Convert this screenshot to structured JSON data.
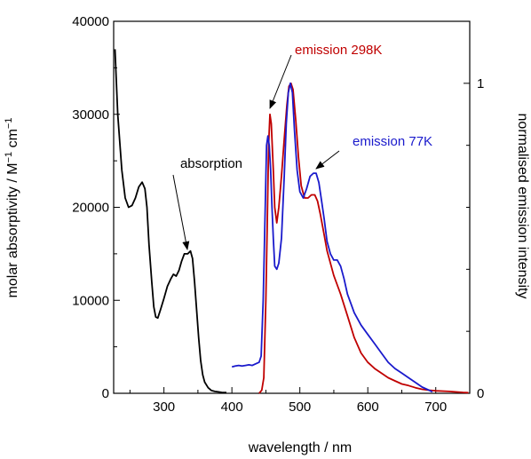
{
  "chart_data": {
    "type": "line",
    "x_axis": {
      "label": "wavelength / nm",
      "range": [
        226,
        750
      ],
      "ticks": [
        300,
        400,
        500,
        600,
        700
      ]
    },
    "y_axis_left": {
      "label_main": "molar absorptivity / M",
      "label_exp1": "−1",
      "label_mid": " cm",
      "label_exp2": "−1",
      "range": [
        0,
        40000
      ],
      "ticks": [
        0,
        10000,
        20000,
        30000,
        40000
      ]
    },
    "y_axis_right": {
      "label": "normalised emission intensity",
      "range": [
        0,
        1.2
      ],
      "ticks": [
        0,
        1
      ]
    },
    "series": [
      {
        "name": "absorption",
        "axis": "left",
        "color": "#000000",
        "points": [
          [
            228,
            37000
          ],
          [
            232,
            30000
          ],
          [
            238,
            24000
          ],
          [
            243,
            21000
          ],
          [
            248,
            20000
          ],
          [
            253,
            20200
          ],
          [
            258,
            21000
          ],
          [
            263,
            22200
          ],
          [
            268,
            22700
          ],
          [
            272,
            22000
          ],
          [
            275,
            20000
          ],
          [
            278,
            16000
          ],
          [
            282,
            12000
          ],
          [
            285,
            9300
          ],
          [
            288,
            8200
          ],
          [
            291,
            8100
          ],
          [
            295,
            9000
          ],
          [
            300,
            10200
          ],
          [
            305,
            11500
          ],
          [
            310,
            12300
          ],
          [
            314,
            12800
          ],
          [
            318,
            12600
          ],
          [
            322,
            13200
          ],
          [
            326,
            14200
          ],
          [
            330,
            15000
          ],
          [
            335,
            15000
          ],
          [
            339,
            15300
          ],
          [
            342,
            14500
          ],
          [
            345,
            12000
          ],
          [
            348,
            9000
          ],
          [
            351,
            6000
          ],
          [
            354,
            3500
          ],
          [
            357,
            2000
          ],
          [
            360,
            1200
          ],
          [
            365,
            600
          ],
          [
            370,
            300
          ],
          [
            375,
            200
          ],
          [
            380,
            150
          ],
          [
            385,
            100
          ],
          [
            392,
            80
          ]
        ]
      },
      {
        "name": "emission 298K",
        "axis": "right",
        "color": "#c00000",
        "points": [
          [
            440,
            0.0
          ],
          [
            444,
            0.01
          ],
          [
            447,
            0.05
          ],
          [
            450,
            0.3
          ],
          [
            452,
            0.55
          ],
          [
            454,
            0.8
          ],
          [
            456,
            0.9
          ],
          [
            458,
            0.87
          ],
          [
            461,
            0.72
          ],
          [
            463,
            0.6
          ],
          [
            466,
            0.55
          ],
          [
            469,
            0.6
          ],
          [
            473,
            0.7
          ],
          [
            477,
            0.82
          ],
          [
            481,
            0.93
          ],
          [
            484,
            0.99
          ],
          [
            487,
            1.0
          ],
          [
            490,
            0.98
          ],
          [
            494,
            0.88
          ],
          [
            498,
            0.76
          ],
          [
            502,
            0.67
          ],
          [
            507,
            0.63
          ],
          [
            512,
            0.63
          ],
          [
            517,
            0.64
          ],
          [
            522,
            0.64
          ],
          [
            526,
            0.62
          ],
          [
            530,
            0.58
          ],
          [
            535,
            0.52
          ],
          [
            540,
            0.46
          ],
          [
            550,
            0.38
          ],
          [
            560,
            0.32
          ],
          [
            570,
            0.25
          ],
          [
            580,
            0.18
          ],
          [
            590,
            0.13
          ],
          [
            600,
            0.1
          ],
          [
            610,
            0.08
          ],
          [
            620,
            0.065
          ],
          [
            630,
            0.05
          ],
          [
            640,
            0.04
          ],
          [
            650,
            0.03
          ],
          [
            660,
            0.025
          ],
          [
            670,
            0.018
          ],
          [
            680,
            0.013
          ],
          [
            690,
            0.01
          ],
          [
            700,
            0.008
          ],
          [
            720,
            0.006
          ],
          [
            740,
            0.003
          ],
          [
            748,
            0.002
          ]
        ]
      },
      {
        "name": "emission 77K",
        "axis": "right",
        "color": "#1a1acc",
        "points": [
          [
            400,
            0.085
          ],
          [
            405,
            0.088
          ],
          [
            410,
            0.09
          ],
          [
            415,
            0.088
          ],
          [
            420,
            0.09
          ],
          [
            425,
            0.092
          ],
          [
            430,
            0.09
          ],
          [
            435,
            0.095
          ],
          [
            440,
            0.1
          ],
          [
            443,
            0.12
          ],
          [
            446,
            0.3
          ],
          [
            449,
            0.6
          ],
          [
            451,
            0.8
          ],
          [
            453,
            0.83
          ],
          [
            455,
            0.8
          ],
          [
            457,
            0.72
          ],
          [
            459,
            0.6
          ],
          [
            461,
            0.5
          ],
          [
            463,
            0.41
          ],
          [
            466,
            0.4
          ],
          [
            469,
            0.42
          ],
          [
            473,
            0.5
          ],
          [
            477,
            0.7
          ],
          [
            480,
            0.87
          ],
          [
            483,
            0.97
          ],
          [
            486,
            1.0
          ],
          [
            489,
            0.97
          ],
          [
            492,
            0.85
          ],
          [
            496,
            0.72
          ],
          [
            500,
            0.65
          ],
          [
            505,
            0.63
          ],
          [
            510,
            0.66
          ],
          [
            515,
            0.7
          ],
          [
            520,
            0.71
          ],
          [
            524,
            0.71
          ],
          [
            528,
            0.68
          ],
          [
            532,
            0.62
          ],
          [
            536,
            0.56
          ],
          [
            540,
            0.49
          ],
          [
            545,
            0.45
          ],
          [
            550,
            0.43
          ],
          [
            555,
            0.43
          ],
          [
            560,
            0.41
          ],
          [
            565,
            0.37
          ],
          [
            570,
            0.32
          ],
          [
            575,
            0.29
          ],
          [
            580,
            0.26
          ],
          [
            590,
            0.22
          ],
          [
            600,
            0.19
          ],
          [
            610,
            0.16
          ],
          [
            620,
            0.13
          ],
          [
            630,
            0.1
          ],
          [
            640,
            0.08
          ],
          [
            650,
            0.065
          ],
          [
            660,
            0.05
          ],
          [
            670,
            0.035
          ],
          [
            680,
            0.02
          ],
          [
            690,
            0.01
          ],
          [
            695,
            0.005
          ]
        ]
      }
    ],
    "annotations": [
      {
        "name": "absorption",
        "text": "absorption",
        "color": "#000000"
      },
      {
        "name": "emission-298k",
        "text": "emission 298K",
        "color": "#c00000"
      },
      {
        "name": "emission-77k",
        "text": "emission 77K",
        "color": "#1a1acc"
      }
    ]
  }
}
